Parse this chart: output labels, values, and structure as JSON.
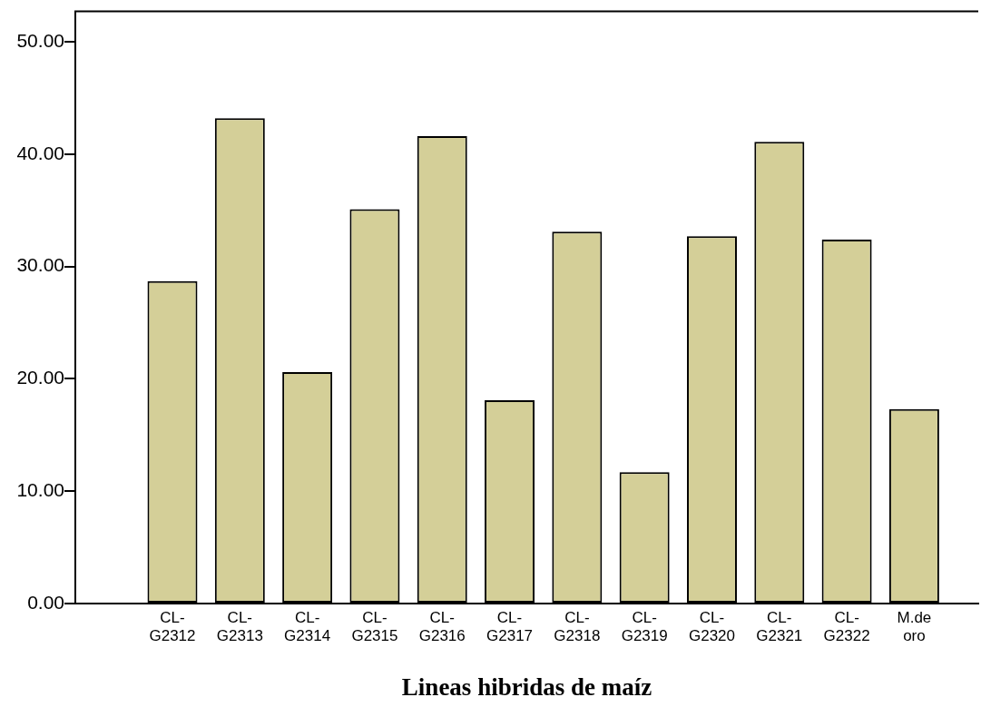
{
  "chart_data": {
    "type": "bar",
    "xlabel": "Lineas hibridas de maíz",
    "categories": [
      "CL-\nG2312",
      "CL-\nG2313",
      "CL-\nG2314",
      "CL-\nG2315",
      "CL-\nG2316",
      "CL-\nG2317",
      "CL-\nG2318",
      "CL-\nG2319",
      "CL-\nG2320",
      "CL-\nG2321",
      "CL-\nG2322",
      "M.de\noro"
    ],
    "values": [
      28.7,
      43.2,
      20.6,
      35.1,
      41.6,
      18.1,
      33.1,
      11.7,
      32.7,
      41.1,
      32.4,
      17.3
    ],
    "color": "#d4cf98",
    "ylim": [
      0,
      52.7
    ],
    "yticks": [
      {
        "value": 0,
        "label": "0.00"
      },
      {
        "value": 10,
        "label": "10.00"
      },
      {
        "value": 20,
        "label": "20.00"
      },
      {
        "value": 30,
        "label": "30.00"
      },
      {
        "value": 40,
        "label": "40.00"
      },
      {
        "value": 50,
        "label": "50.00"
      }
    ],
    "grid": false,
    "legend": false
  }
}
